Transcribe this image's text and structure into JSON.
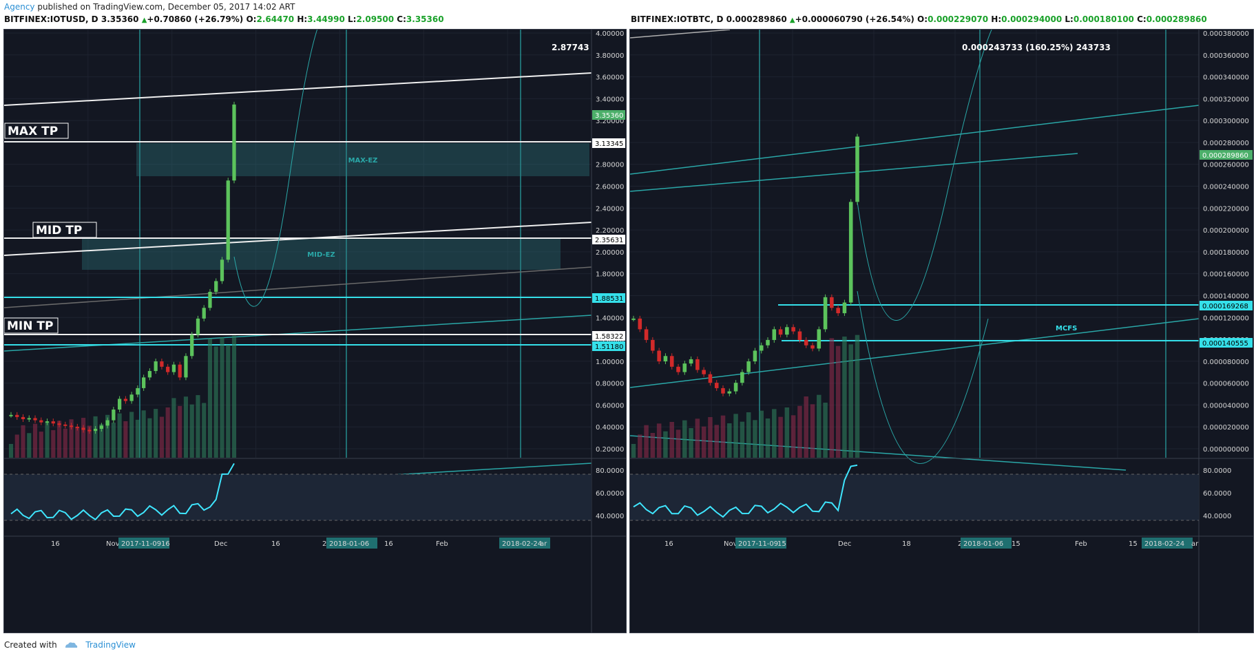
{
  "header": {
    "brand": "Agency",
    "text": " published on TradingView.com, December 05, 2017 14:02 ART"
  },
  "footer": {
    "created_with": "Created with",
    "tradingview": "TradingView"
  },
  "colors": {
    "bg": "#131722",
    "teal": "#2aa8a8",
    "cyan": "#35e0ea",
    "white": "#e8e8e8",
    "green": "#5cc35c",
    "red": "#d12a2a",
    "rsi": "#3fe6ff",
    "zone": "#2e7a80"
  },
  "left": {
    "symbol": "BITFINEX:IOTUSD, D",
    "price": "3.35360",
    "change": "+0.70860 (+26.79%)",
    "o": "2.64470",
    "h": "3.44990",
    "l": "2.09500",
    "c": "3.35360",
    "axis": [
      "4.00000",
      "3.80000",
      "3.60000",
      "3.40000",
      "3.20000",
      "3.00000",
      "2.80000",
      "2.60000",
      "2.40000",
      "2.20000",
      "2.00000",
      "1.80000",
      "1.60000",
      "1.40000",
      "1.20000",
      "1.00000",
      "0.80000",
      "0.60000",
      "0.40000",
      "0.20000"
    ],
    "rsi_axis": [
      "80.0000",
      "60.0000",
      "40.0000"
    ],
    "time": [
      "16",
      "Nov",
      "2017-11-09",
      "16",
      "Dec",
      "16",
      "2018",
      "2018-01-06",
      "16",
      "Feb",
      "2018-02-24",
      "ar"
    ],
    "tags": [
      {
        "label": "3.35360",
        "kind": "green"
      },
      {
        "label": "3.13345",
        "kind": "white"
      },
      {
        "label": "2.35631",
        "kind": "white"
      },
      {
        "label": "1.88531",
        "kind": "cyan"
      },
      {
        "label": "1.58322",
        "kind": "white"
      },
      {
        "label": "1.51180",
        "kind": "cyan"
      }
    ],
    "labels": {
      "max_tp": "MAX TP",
      "mid_tp": "MID TP",
      "min_tp": "MIN TP",
      "max_ez": "MAX-EZ",
      "mid_ez": "MID-EZ",
      "measure": "2.87743"
    }
  },
  "right": {
    "symbol": "BITFINEX:IOTBTC, D",
    "price": "0.000289860",
    "change": "+0.000060790 (+26.54%)",
    "o": "0.000229070",
    "h": "0.000294000",
    "l": "0.000180100",
    "c": "0.000289860",
    "axis": [
      "0.000380000",
      "0.000360000",
      "0.000340000",
      "0.000320000",
      "0.000300000",
      "0.000280000",
      "0.000260000",
      "0.000240000",
      "0.000220000",
      "0.000200000",
      "0.000180000",
      "0.000160000",
      "0.000140000",
      "0.000120000",
      "0.000100000",
      "0.000080000",
      "0.000060000",
      "0.000040000",
      "0.000020000",
      "0.000000000"
    ],
    "rsi_axis": [
      "80.0000",
      "60.0000",
      "40.0000"
    ],
    "time": [
      "16",
      "Nov",
      "2017-11-09",
      "15",
      "Dec",
      "18",
      "2018",
      "2018-01-06",
      "15",
      "Feb",
      "15",
      "2018-02-24",
      "ar"
    ],
    "tags": [
      {
        "label": "0.000289860",
        "kind": "green"
      },
      {
        "label": "0.000169268",
        "kind": "cyan"
      },
      {
        "label": "0.000140555",
        "kind": "cyan"
      }
    ],
    "labels": {
      "mcfs": "MCFS",
      "measure": "0.000243733 (160.25%) 243733"
    }
  },
  "chart_data": [
    {
      "type": "line",
      "title": "BITFINEX:IOTUSD, D",
      "ylim": [
        0.05,
        4.05
      ],
      "series": [
        {
          "values": [
            0.45,
            0.43,
            0.41,
            0.42,
            0.4,
            0.38,
            0.39,
            0.37,
            0.36,
            0.35,
            0.34,
            0.33,
            0.31,
            0.3,
            0.32,
            0.35,
            0.4,
            0.5,
            0.6,
            0.58,
            0.64,
            0.7,
            0.8,
            0.86,
            0.95,
            0.9,
            0.85,
            0.92,
            0.8,
            1.0,
            1.2,
            1.35,
            1.45,
            1.6,
            1.7,
            1.9,
            2.64,
            3.35
          ]
        }
      ]
    },
    {
      "type": "line",
      "title": "BITFINEX:IOTBTC, D",
      "ylim": [
        -1e-05,
        0.00039
      ],
      "series": [
        {
          "values": [
            0.00012,
            0.00011,
            0.0001,
            9e-05,
            8e-05,
            8.5e-05,
            7.5e-05,
            7e-05,
            7.8e-05,
            8.2e-05,
            7.2e-05,
            6.8e-05,
            6e-05,
            5.5e-05,
            5e-05,
            5.2e-05,
            6e-05,
            7e-05,
            8e-05,
            9e-05,
            9.5e-05,
            0.0001,
            0.00011,
            0.000105,
            0.000112,
            0.000108,
            0.0001,
            9.5e-05,
            9.2e-05,
            0.00011,
            0.00014,
            0.00013,
            0.000125,
            0.000135,
            0.000229,
            0.00029
          ]
        }
      ]
    }
  ]
}
